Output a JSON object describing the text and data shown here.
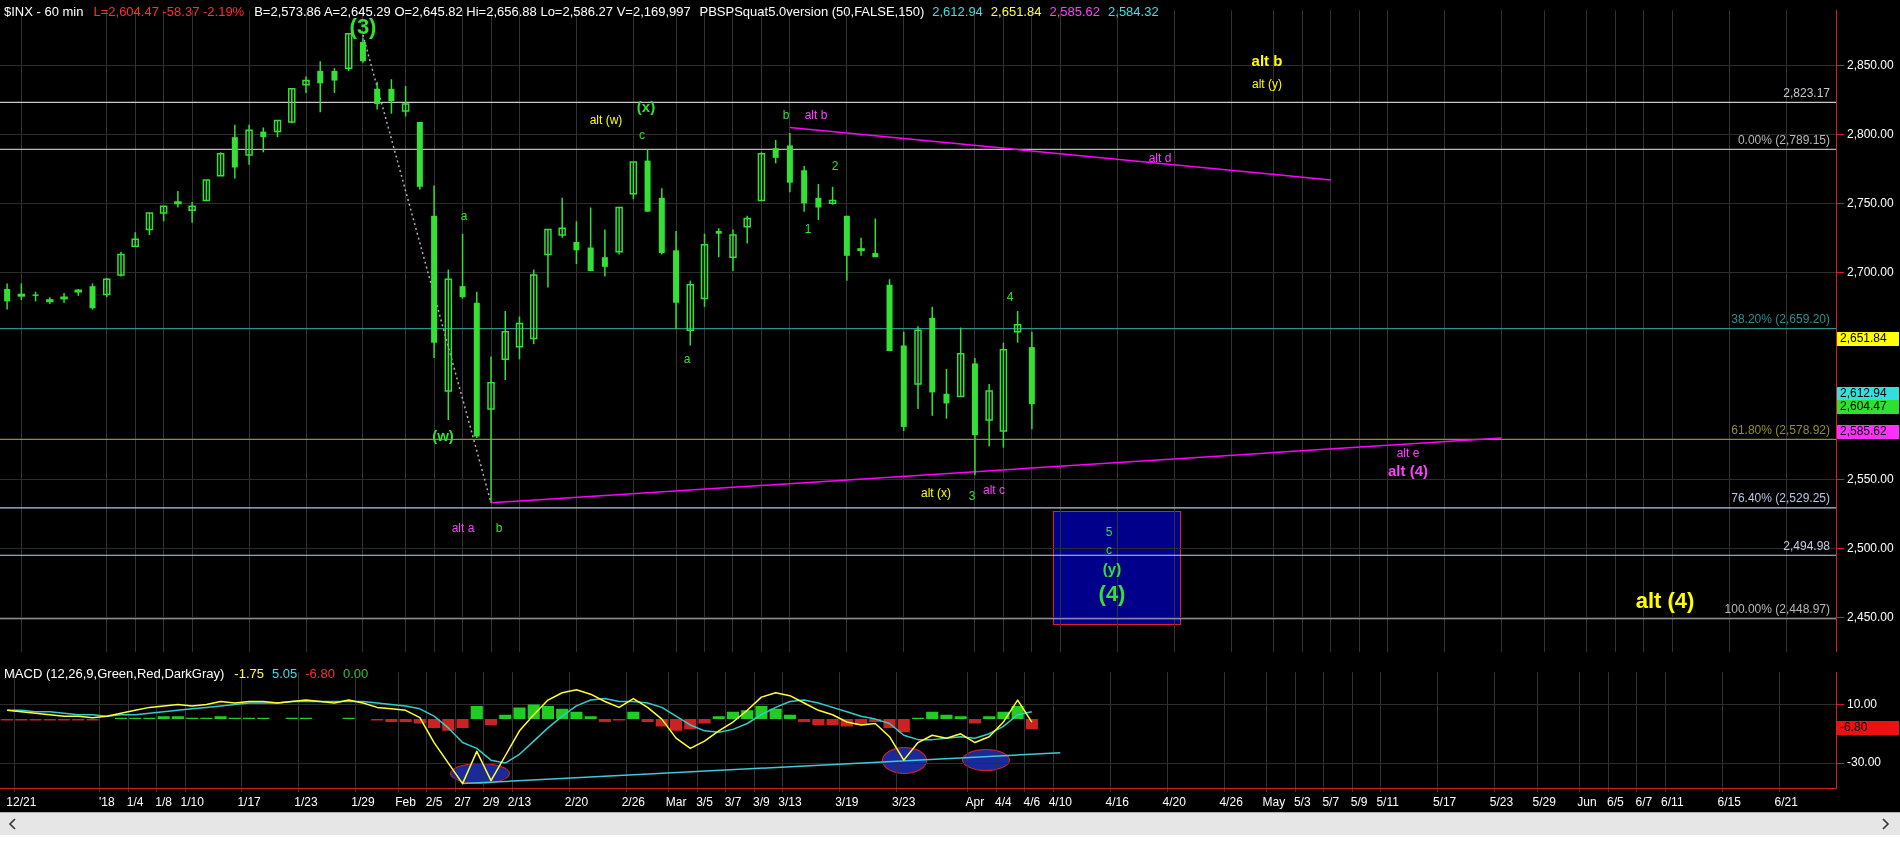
{
  "chart_data": [
    {
      "type": "candlestick",
      "title": "$INX - 60 min",
      "subtitle": "L=2,604.47 -58.37 -2.19%",
      "categories": [
        null,
        "12/21",
        null,
        null,
        null,
        null,
        null,
        "'18",
        null,
        "1/4",
        null,
        "1/8",
        null,
        "1/10",
        null,
        null,
        null,
        "1/17",
        null,
        null,
        null,
        "1/23",
        null,
        null,
        null,
        "1/29",
        null,
        null,
        "Feb",
        null,
        "2/5",
        null,
        "2/7",
        null,
        "2/9",
        null,
        "2/13",
        null,
        null,
        null,
        "2/20",
        null,
        null,
        null,
        "2/26",
        null,
        null,
        "Mar",
        null,
        "3/5",
        null,
        "3/7",
        null,
        "3/9",
        null,
        "3/13",
        null,
        null,
        null,
        "3/19",
        null,
        null,
        null,
        "3/23",
        null,
        null,
        null,
        null,
        "Apr",
        null,
        "4/4",
        null,
        "4/6",
        null,
        "4/10",
        null,
        null,
        null,
        "4/16",
        null,
        null,
        null,
        "4/20",
        null,
        null,
        null,
        "4/26",
        null,
        null,
        "May",
        null,
        "5/3",
        null,
        "5/7",
        null,
        "5/9",
        null,
        "5/11",
        null,
        null,
        null,
        "5/17",
        null,
        null,
        null,
        "5/23",
        null,
        null,
        "5/29",
        null,
        null,
        "Jun",
        null,
        "6/5",
        null,
        "6/7",
        null,
        "6/11",
        null,
        null,
        null,
        "6/15",
        null,
        null,
        null,
        "6/21",
        null,
        null,
        null
      ],
      "color": "#33e033",
      "ohlc": [
        [
          2688,
          2692,
          2673,
          2679
        ],
        [
          2683,
          2692,
          2680,
          2684
        ],
        [
          2684,
          2686,
          2679,
          2683
        ],
        [
          2680,
          2682,
          2677,
          2680
        ],
        [
          2682,
          2685,
          2678,
          2682
        ],
        [
          2686,
          2688,
          2683,
          2687
        ],
        [
          2690,
          2692,
          2673,
          2674
        ],
        [
          2684,
          2696,
          2682,
          2695
        ],
        [
          2698,
          2715,
          2697,
          2713
        ],
        [
          2719,
          2729,
          2719,
          2724
        ],
        [
          2731,
          2743,
          2727,
          2743
        ],
        [
          2743,
          2748,
          2737,
          2748
        ],
        [
          2751,
          2759,
          2747,
          2751
        ],
        [
          2745,
          2751,
          2736,
          2748
        ],
        [
          2752,
          2767,
          2752,
          2767
        ],
        [
          2770,
          2787,
          2770,
          2786
        ],
        [
          2798,
          2807,
          2768,
          2776
        ],
        [
          2785,
          2807,
          2778,
          2803
        ],
        [
          2802,
          2805,
          2787,
          2798
        ],
        [
          2802,
          2810,
          2798,
          2810
        ],
        [
          2809,
          2833,
          2808,
          2833
        ],
        [
          2836,
          2842,
          2830,
          2839
        ],
        [
          2846,
          2853,
          2816,
          2837
        ],
        [
          2846,
          2848,
          2830,
          2839
        ],
        [
          2848,
          2873,
          2846,
          2873
        ],
        [
          2867,
          2870,
          2852,
          2853
        ],
        [
          2833,
          2838,
          2818,
          2822
        ],
        [
          2833,
          2840,
          2815,
          2824
        ],
        [
          2817,
          2835,
          2813,
          2822
        ],
        [
          2809,
          2809,
          2760,
          2762
        ],
        [
          2741,
          2763,
          2638,
          2649
        ],
        [
          2614,
          2702,
          2593,
          2695
        ],
        [
          2690,
          2728,
          2681,
          2682
        ],
        [
          2678,
          2686,
          2580,
          2581
        ],
        [
          2601,
          2639,
          2533,
          2620
        ],
        [
          2637,
          2672,
          2622,
          2657
        ],
        [
          2646,
          2668,
          2637,
          2663
        ],
        [
          2652,
          2702,
          2648,
          2698
        ],
        [
          2713,
          2731,
          2689,
          2731
        ],
        [
          2727,
          2754,
          2725,
          2732
        ],
        [
          2722,
          2737,
          2706,
          2716
        ],
        [
          2718,
          2747,
          2701,
          2701
        ],
        [
          2711,
          2731,
          2697,
          2704
        ],
        [
          2715,
          2747,
          2713,
          2747
        ],
        [
          2757,
          2780,
          2753,
          2780
        ],
        [
          2781,
          2789,
          2744,
          2744
        ],
        [
          2754,
          2761,
          2713,
          2714
        ],
        [
          2716,
          2730,
          2659,
          2678
        ],
        [
          2658,
          2694,
          2647,
          2691
        ],
        [
          2681,
          2728,
          2675,
          2720
        ],
        [
          2730,
          2732,
          2711,
          2728
        ],
        [
          2711,
          2731,
          2701,
          2727
        ],
        [
          2733,
          2741,
          2721,
          2739
        ],
        [
          2752,
          2787,
          2752,
          2786
        ],
        [
          2790,
          2796,
          2779,
          2783
        ],
        [
          2792,
          2801,
          2758,
          2765
        ],
        [
          2774,
          2777,
          2744,
          2750
        ],
        [
          2754,
          2764,
          2738,
          2747
        ],
        [
          2750,
          2762,
          2749,
          2752
        ],
        [
          2741,
          2741,
          2694,
          2712
        ],
        [
          2716,
          2725,
          2712,
          2717
        ],
        [
          2714,
          2739,
          2711,
          2711
        ],
        [
          2691,
          2695,
          2643,
          2643
        ],
        [
          2647,
          2657,
          2585,
          2588
        ],
        [
          2619,
          2661,
          2601,
          2658
        ],
        [
          2667,
          2675,
          2596,
          2613
        ],
        [
          2612,
          2630,
          2594,
          2605
        ],
        [
          2610,
          2660,
          2610,
          2641
        ],
        [
          2634,
          2638,
          2553,
          2582
        ],
        [
          2593,
          2619,
          2574,
          2614
        ],
        [
          2585,
          2649,
          2573,
          2644
        ],
        [
          2657,
          2672,
          2649,
          2662
        ],
        [
          2645.82,
          2656.88,
          2586.27,
          2604.47
        ],
        null,
        null,
        null,
        null,
        null,
        null,
        null,
        null,
        null,
        null,
        null,
        null,
        null,
        null,
        null,
        null,
        null,
        null,
        null,
        null,
        null,
        null,
        null,
        null,
        null,
        null,
        null,
        null,
        null,
        null,
        null,
        null,
        null,
        null,
        null,
        null,
        null,
        null,
        null,
        null,
        null,
        null,
        null,
        null,
        null,
        null,
        null,
        null,
        null,
        null,
        null,
        null,
        null,
        null,
        null,
        null
      ],
      "series": [
        {
          "type": "line",
          "x": [
            "2/9",
            "5/23"
          ],
          "values": [
            2533,
            2580
          ],
          "color": "#ff00ff"
        },
        {
          "type": "line",
          "x": [
            "3/13",
            "5/7"
          ],
          "values": [
            2805,
            2767
          ],
          "color": "#ff00ff"
        },
        {
          "type": "line",
          "x": [
            "1/29",
            "2/9"
          ],
          "values": [
            2872,
            2533
          ],
          "color": "#b0b0b0",
          "line_style": "dotted"
        }
      ],
      "ylim": [
        2425,
        2890
      ],
      "yticks": [
        {
          "value": 2450,
          "label": "2,450.00"
        },
        {
          "value": 2500,
          "label": "2,500.00"
        },
        {
          "value": 2550,
          "label": "2,550.00"
        },
        {
          "value": 2700,
          "label": "2,700.00"
        },
        {
          "value": 2750,
          "label": "2,750.00"
        },
        {
          "value": 2800,
          "label": "2,800.00"
        },
        {
          "value": 2850,
          "label": "2,850.00"
        }
      ],
      "ref_lines": [
        {
          "axis": "y",
          "value": 2823.17,
          "label": "2,823.17",
          "color": "#c8c8d0"
        },
        {
          "axis": "y",
          "value": 2789.15,
          "label": "0.00% (2,789.15)",
          "color": "#b8b8b8"
        },
        {
          "axis": "y",
          "value": 2659.2,
          "label": "38.20% (2,659.20)",
          "color": "#2e8f8f"
        },
        {
          "axis": "y",
          "value": 2578.92,
          "label": "61.80% (2,578.92)",
          "color": "#8f8f2e"
        },
        {
          "axis": "y",
          "value": 2529.25,
          "label": "76.40% (2,529.25)",
          "color": "#b8c4e0"
        },
        {
          "axis": "y",
          "value": 2494.98,
          "label": "2,494.98",
          "color": "#c0cce8"
        },
        {
          "axis": "y",
          "value": 2448.97,
          "label": "100.00% (2,448.97)",
          "color": "#b8b8b8"
        }
      ],
      "annotations": [
        "B=2,573.86 A=2,645.29 O=2,645.82 Hi=2,656.88 Lo=2,586.27 V=2,169,997",
        "PBSPSquat5.0version (50,FALSE,150)",
        "2,612.94",
        "2,651.84",
        "2,585.62",
        "2,584.32",
        "2,651.84",
        "2,612.94",
        "2,604.47",
        "2,585.62",
        "(3)",
        "alt (w)",
        "(x)",
        "c",
        "b",
        "alt b",
        "2",
        "1",
        "a",
        "4",
        "a",
        "(w)",
        "alt a",
        "b",
        "alt (x)",
        "3",
        "alt c",
        "alt b",
        "alt (y)",
        "alt d",
        "alt e",
        "alt (4)",
        "5",
        "c",
        "(y)",
        "(4)",
        "alt (4)"
      ],
      "grid": true,
      "tick_labels": "y"
    },
    {
      "type": "bar",
      "title": "MACD (12,26,9,Green,Red,DarkGray)",
      "categories": [
        null,
        "12/21",
        null,
        null,
        null,
        null,
        null,
        "'18",
        null,
        "1/4",
        null,
        "1/8",
        null,
        "1/10",
        null,
        null,
        null,
        "1/17",
        null,
        null,
        null,
        "1/23",
        null,
        null,
        null,
        "1/29",
        null,
        null,
        "Feb",
        null,
        "2/5",
        null,
        "2/7",
        null,
        "2/9",
        null,
        "2/13",
        null,
        null,
        null,
        "2/20",
        null,
        null,
        null,
        "2/26",
        null,
        null,
        "Mar",
        null,
        "3/5",
        null,
        "3/7",
        null,
        "3/9",
        null,
        "3/13",
        null,
        null,
        null,
        "3/19",
        null,
        null,
        null,
        "3/23",
        null,
        null,
        null,
        null,
        "Apr",
        null,
        "4/4",
        null,
        "4/6",
        null,
        "4/10",
        null,
        null,
        null,
        "4/16",
        null,
        null,
        null,
        "4/20",
        null,
        null,
        null,
        "4/26",
        null,
        null,
        "May",
        null,
        "5/3",
        null,
        "5/7",
        null,
        "5/9",
        null,
        "5/11",
        null,
        null,
        null,
        "5/17",
        null,
        null,
        null,
        "5/23",
        null,
        null,
        "5/29",
        null,
        null,
        "Jun",
        null,
        "6/5",
        null,
        "6/7",
        null,
        "6/11",
        null,
        null,
        null,
        "6/15",
        null,
        null,
        null,
        "6/21",
        null,
        null,
        null
      ],
      "series": [
        {
          "type": "bar",
          "values": [
            -1,
            -1,
            -1,
            -1,
            -1,
            -1,
            -1,
            0,
            1,
            1,
            1,
            2,
            2,
            1,
            1,
            2,
            1,
            1,
            1,
            0,
            1,
            1,
            0,
            0,
            1,
            0,
            -1,
            -2,
            -2,
            -3,
            -6,
            -8,
            -6,
            9,
            -4,
            3,
            8,
            10,
            9,
            7,
            5,
            2,
            -2,
            -1,
            5,
            -2,
            -5,
            -8,
            -7,
            -3,
            2,
            5,
            6,
            9,
            7,
            3,
            -2,
            -4,
            -4,
            -5,
            -4,
            -2,
            -6,
            -9,
            1,
            5,
            3,
            2,
            -3,
            2,
            5,
            9,
            -7,
            null,
            null,
            null,
            null,
            null,
            null,
            null,
            null,
            null,
            null,
            null,
            null,
            null,
            null,
            null,
            null,
            null,
            null,
            null,
            null,
            null,
            null,
            null,
            null,
            null,
            null,
            null,
            null,
            null,
            null,
            null,
            null,
            null,
            null,
            null,
            null,
            null,
            null,
            null,
            null,
            null,
            null,
            null,
            null,
            null,
            null,
            null,
            null,
            null,
            null,
            null,
            null,
            null,
            null,
            null,
            null
          ],
          "colors": [
            "#cc2222",
            "#cc2222",
            "#cc2222",
            "#cc2222",
            "#cc2222",
            "#cc2222",
            "#cc2222",
            "#22cc22",
            "#22cc22",
            "#22cc22",
            "#22cc22",
            "#22cc22",
            "#22cc22",
            "#22cc22",
            "#22cc22",
            "#22cc22",
            "#22cc22",
            "#22cc22",
            "#22cc22",
            "#22cc22",
            "#22cc22",
            "#22cc22",
            "#22cc22",
            "#22cc22",
            "#22cc22",
            "#22cc22",
            "#cc2222",
            "#cc2222",
            "#cc2222",
            "#cc2222",
            "#cc2222",
            "#cc2222",
            "#cc2222",
            "#22cc22",
            "#cc2222",
            "#22cc22",
            "#22cc22",
            "#22cc22",
            "#22cc22",
            "#22cc22",
            "#22cc22",
            "#22cc22",
            "#cc2222",
            "#cc2222",
            "#22cc22",
            "#cc2222",
            "#cc2222",
            "#cc2222",
            "#cc2222",
            "#cc2222",
            "#22cc22",
            "#22cc22",
            "#22cc22",
            "#22cc22",
            "#22cc22",
            "#22cc22",
            "#cc2222",
            "#cc2222",
            "#cc2222",
            "#cc2222",
            "#cc2222",
            "#cc2222",
            "#cc2222",
            "#cc2222",
            "#22cc22",
            "#22cc22",
            "#22cc22",
            "#22cc22",
            "#cc2222",
            "#22cc22",
            "#22cc22",
            "#22cc22",
            "#cc2222",
            null,
            null,
            null,
            null,
            null,
            null,
            null,
            null,
            null,
            null,
            null,
            null,
            null,
            null,
            null,
            null,
            null,
            null,
            null,
            null,
            null,
            null,
            null,
            null,
            null,
            null,
            null,
            null,
            null,
            null,
            null,
            null,
            null,
            null,
            null,
            null,
            null,
            null,
            null,
            null,
            null,
            null,
            null,
            null,
            null,
            null,
            null,
            null,
            null,
            null,
            null,
            null,
            null,
            null,
            null,
            null
          ]
        },
        {
          "type": "line",
          "color": "#ffff33",
          "values": [
            6,
            5,
            4,
            3,
            2,
            2,
            1,
            2,
            4,
            6,
            8,
            9,
            10,
            9,
            10,
            12,
            11,
            12,
            12,
            11,
            12,
            13,
            12,
            11,
            13,
            11,
            8,
            7,
            6,
            1,
            -16,
            -30,
            -44,
            -22,
            -42,
            -25,
            -8,
            3,
            13,
            18,
            20,
            17,
            12,
            8,
            14,
            8,
            0,
            -13,
            -20,
            -15,
            -8,
            -2,
            6,
            15,
            18,
            16,
            11,
            6,
            3,
            -2,
            -4,
            -3,
            -12,
            -28,
            -16,
            -11,
            -13,
            -10,
            -16,
            -12,
            -2,
            13,
            -2,
            null,
            null,
            null,
            null,
            null,
            null,
            null,
            null,
            null,
            null,
            null,
            null,
            null,
            null,
            null,
            null,
            null,
            null,
            null,
            null,
            null,
            null,
            null,
            null,
            null,
            null,
            null,
            null,
            null,
            null,
            null,
            null,
            null,
            null,
            null,
            null,
            null,
            null,
            null,
            null,
            null,
            null,
            null,
            null,
            null,
            null,
            null,
            null,
            null,
            null,
            null,
            null,
            null,
            null,
            null,
            null
          ]
        },
        {
          "type": "line",
          "color": "#33cccc",
          "values": [
            6,
            6,
            5,
            5,
            4,
            3,
            3,
            2,
            3,
            3,
            4,
            5,
            6,
            7,
            8,
            9,
            10,
            11,
            11,
            11,
            12,
            12,
            12,
            12,
            12,
            12,
            11,
            10,
            9,
            7,
            2,
            -6,
            -16,
            -20,
            -28,
            -30,
            -24,
            -15,
            -6,
            2,
            9,
            13,
            14,
            12,
            12,
            11,
            8,
            2,
            -4,
            -8,
            -9,
            -7,
            -3,
            3,
            8,
            12,
            13,
            11,
            8,
            5,
            2,
            0,
            -3,
            -11,
            -14,
            -14,
            -13,
            -12,
            -13,
            -10,
            -5,
            3,
            5,
            null,
            null,
            null,
            null,
            null,
            null,
            null,
            null,
            null,
            null,
            null,
            null,
            null,
            null,
            null,
            null,
            null,
            null,
            null,
            null,
            null,
            null,
            null,
            null,
            null,
            null,
            null,
            null,
            null,
            null,
            null,
            null,
            null,
            null,
            null,
            null,
            null,
            null,
            null,
            null,
            null,
            null,
            null,
            null,
            null,
            null,
            null,
            null,
            null,
            null,
            null,
            null,
            null,
            null,
            null,
            null
          ]
        },
        {
          "type": "line",
          "x": [
            "2/7",
            "4/10"
          ],
          "values": [
            -44,
            -23
          ],
          "color": "#40c8d8"
        }
      ],
      "ylim": [
        -47,
        32
      ],
      "yticks": [
        {
          "value": 10,
          "label": "10.00"
        },
        {
          "value": -30,
          "label": "-30.00"
        }
      ],
      "annotations": [
        "-1.75",
        "5.05",
        "-6.80",
        "0.00",
        "-6.80"
      ],
      "grid": true
    }
  ]
}
